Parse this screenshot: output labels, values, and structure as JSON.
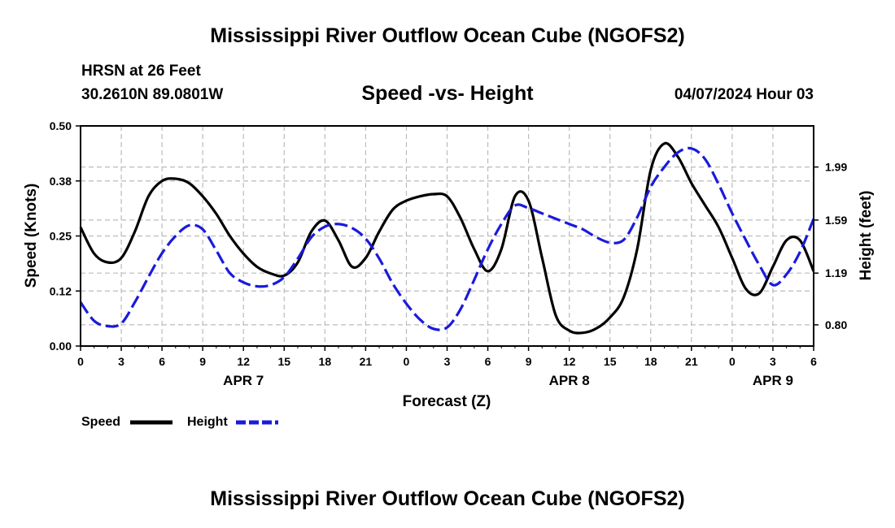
{
  "header": {
    "title": "Mississippi River Outflow Ocean Cube (NGOFS2)",
    "station": "HRSN at 26 Feet",
    "coords": "30.2610N  89.0801W",
    "subtitle": "Speed -vs- Height",
    "timestamp": "04/07/2024 Hour 03"
  },
  "footer": {
    "title": "Mississippi River Outflow Ocean Cube (NGOFS2)"
  },
  "colors": {
    "speed": "#000000",
    "height": "#1a1adc",
    "grid": "#bbbbbb"
  },
  "chart_data": {
    "type": "line",
    "title": "Speed -vs- Height",
    "xlabel": "Forecast (Z)",
    "ylabel": "Speed (Knots)",
    "ylabel_right": "Height (feet)",
    "xlim": [
      0,
      54
    ],
    "ylim": [
      0,
      0.5
    ],
    "ylim_right": [
      0.64,
      2.3
    ],
    "x_ticks": [
      0,
      3,
      6,
      9,
      12,
      15,
      18,
      21,
      24,
      27,
      30,
      33,
      36,
      39,
      42,
      45,
      48,
      51,
      54
    ],
    "x_tick_labels": [
      "0",
      "3",
      "6",
      "9",
      "12",
      "15",
      "18",
      "21",
      "0",
      "3",
      "6",
      "9",
      "12",
      "15",
      "18",
      "21",
      "0",
      "3",
      "6"
    ],
    "day_labels": [
      {
        "x": 12,
        "label": "APR 7"
      },
      {
        "x": 36,
        "label": "APR 8"
      },
      {
        "x": 51,
        "label": "APR 9"
      }
    ],
    "y_ticks": [
      0.0,
      0.125,
      0.25,
      0.375,
      0.5
    ],
    "y_tick_labels": [
      "0.00",
      "0.12",
      "0.25",
      "0.38",
      "0.50"
    ],
    "y_ticks_right": [
      0.8,
      1.19,
      1.59,
      1.99
    ],
    "y_tick_labels_right": [
      "0.80",
      "1.19",
      "1.59",
      "1.99"
    ],
    "grid": true,
    "legend": {
      "position": "bottom-left",
      "entries": [
        "Speed",
        "Height"
      ]
    },
    "series": [
      {
        "name": "Speed",
        "axis": "left",
        "style": "solid",
        "x": [
          0,
          1,
          2,
          3,
          4,
          5,
          6,
          7,
          8,
          9,
          10,
          11,
          12,
          13,
          14,
          15,
          16,
          17,
          18,
          19,
          20,
          21,
          22,
          23,
          24,
          25,
          26,
          27,
          28,
          29,
          30,
          31,
          32,
          33,
          34,
          35,
          36,
          37,
          38,
          39,
          40,
          41,
          42,
          43,
          44,
          45,
          46,
          47,
          48,
          49,
          50,
          51,
          52,
          53,
          54
        ],
        "values": [
          0.27,
          0.21,
          0.19,
          0.2,
          0.26,
          0.34,
          0.375,
          0.38,
          0.37,
          0.34,
          0.3,
          0.25,
          0.21,
          0.18,
          0.165,
          0.16,
          0.19,
          0.26,
          0.285,
          0.24,
          0.18,
          0.2,
          0.26,
          0.31,
          0.33,
          0.34,
          0.345,
          0.34,
          0.29,
          0.22,
          0.17,
          0.22,
          0.34,
          0.33,
          0.2,
          0.07,
          0.035,
          0.03,
          0.04,
          0.065,
          0.11,
          0.22,
          0.4,
          0.46,
          0.43,
          0.37,
          0.32,
          0.27,
          0.2,
          0.13,
          0.12,
          0.18,
          0.24,
          0.24,
          0.17
        ]
      },
      {
        "name": "Height",
        "axis": "right",
        "style": "dashed",
        "x": [
          0,
          1,
          2,
          3,
          4,
          5,
          6,
          7,
          8,
          9,
          10,
          11,
          12,
          13,
          14,
          15,
          16,
          17,
          18,
          19,
          20,
          21,
          22,
          23,
          24,
          25,
          26,
          27,
          28,
          29,
          30,
          31,
          32,
          33,
          34,
          35,
          36,
          37,
          38,
          39,
          40,
          41,
          42,
          43,
          44,
          45,
          46,
          47,
          48,
          49,
          50,
          51,
          52,
          53,
          54
        ],
        "values": [
          0.97,
          0.83,
          0.79,
          0.81,
          0.97,
          1.16,
          1.34,
          1.47,
          1.55,
          1.52,
          1.36,
          1.19,
          1.12,
          1.09,
          1.1,
          1.16,
          1.3,
          1.46,
          1.54,
          1.56,
          1.53,
          1.45,
          1.3,
          1.11,
          0.96,
          0.84,
          0.77,
          0.78,
          0.92,
          1.14,
          1.37,
          1.56,
          1.7,
          1.68,
          1.64,
          1.6,
          1.56,
          1.52,
          1.46,
          1.42,
          1.44,
          1.61,
          1.84,
          1.99,
          2.1,
          2.13,
          2.05,
          1.86,
          1.64,
          1.44,
          1.25,
          1.1,
          1.18,
          1.35,
          1.6
        ]
      }
    ]
  }
}
